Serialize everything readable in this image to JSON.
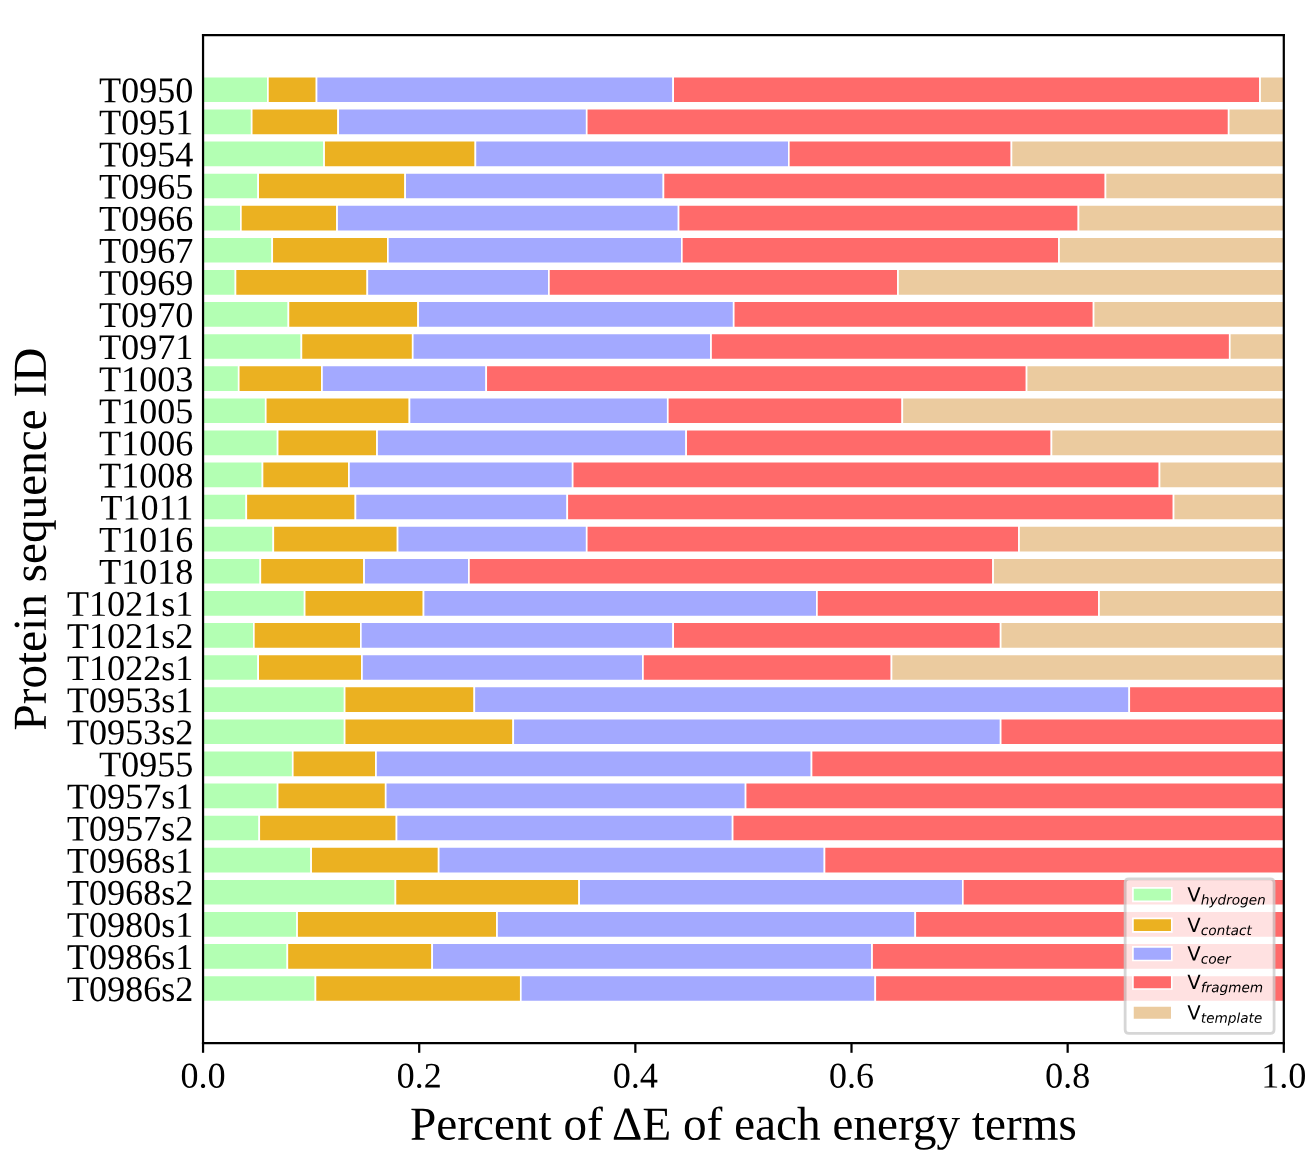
{
  "chart_data": {
    "type": "bar",
    "orientation": "horizontal",
    "stacked": true,
    "xlabel": "Percent of ΔE of each energy terms",
    "ylabel": "Protein sequence ID",
    "categories": [
      "T0950",
      "T0951",
      "T0954",
      "T0965",
      "T0966",
      "T0967",
      "T0969",
      "T0970",
      "T0971",
      "T1003",
      "T1005",
      "T1006",
      "T1008",
      "T1011",
      "T1016",
      "T1018",
      "T1021s1",
      "T1021s2",
      "T1022s1",
      "T0953s1",
      "T0953s2",
      "T0955",
      "T0957s1",
      "T0957s2",
      "T0968s1",
      "T0968s2",
      "T0980s1",
      "T0986s1",
      "T0986s2"
    ],
    "series": [
      {
        "name": "V$_{hydrogen}$",
        "color": "#b3ffb3",
        "values": [
          0.06,
          0.045,
          0.112,
          0.051,
          0.035,
          0.064,
          0.03,
          0.079,
          0.091,
          0.033,
          0.058,
          0.069,
          0.055,
          0.04,
          0.065,
          0.053,
          0.094,
          0.047,
          0.051,
          0.131,
          0.131,
          0.083,
          0.069,
          0.052,
          0.1,
          0.178,
          0.087,
          0.078,
          0.104
        ]
      },
      {
        "name": "V$_{contact}$",
        "color": "#ebb121",
        "values": [
          0.045,
          0.08,
          0.14,
          0.136,
          0.089,
          0.107,
          0.122,
          0.12,
          0.103,
          0.077,
          0.133,
          0.092,
          0.08,
          0.101,
          0.115,
          0.096,
          0.11,
          0.099,
          0.096,
          0.12,
          0.156,
          0.077,
          0.1,
          0.127,
          0.118,
          0.17,
          0.185,
          0.134,
          0.19
        ]
      },
      {
        "name": "V$_{coer}$",
        "color": "#a3a9ff",
        "values": [
          0.33,
          0.23,
          0.29,
          0.239,
          0.316,
          0.272,
          0.168,
          0.292,
          0.276,
          0.152,
          0.239,
          0.286,
          0.207,
          0.196,
          0.175,
          0.097,
          0.364,
          0.289,
          0.26,
          0.606,
          0.451,
          0.403,
          0.333,
          0.311,
          0.357,
          0.355,
          0.387,
          0.407,
          0.328
        ]
      },
      {
        "name": "V$_{fragmem}$",
        "color": "#ff6a6a",
        "values": [
          0.543,
          0.594,
          0.206,
          0.409,
          0.37,
          0.349,
          0.323,
          0.333,
          0.48,
          0.5,
          0.217,
          0.338,
          0.543,
          0.561,
          0.4,
          0.485,
          0.261,
          0.303,
          0.23,
          0.143,
          0.262,
          0.437,
          0.498,
          0.51,
          0.425,
          0.297,
          0.341,
          0.381,
          0.378
        ]
      },
      {
        "name": "V$_{template}$",
        "color": "#ebcb9f",
        "values": [
          0.022,
          0.051,
          0.252,
          0.165,
          0.19,
          0.208,
          0.357,
          0.176,
          0.05,
          0.238,
          0.353,
          0.215,
          0.115,
          0.102,
          0.245,
          0.269,
          0.171,
          0.262,
          0.363,
          null,
          null,
          null,
          null,
          null,
          null,
          null,
          null,
          null,
          null
        ]
      }
    ],
    "xlim": [
      0,
      1
    ],
    "xticks": [
      {
        "value": 0,
        "label": "0.0"
      },
      {
        "value": 0.2,
        "label": "0.2"
      },
      {
        "value": 0.4,
        "label": "0.4"
      },
      {
        "value": 0.6,
        "label": "0.6"
      },
      {
        "value": 0.8,
        "label": "0.8"
      },
      {
        "value": 1,
        "label": "1.0"
      }
    ],
    "legend": "bottom right",
    "grid": false
  }
}
